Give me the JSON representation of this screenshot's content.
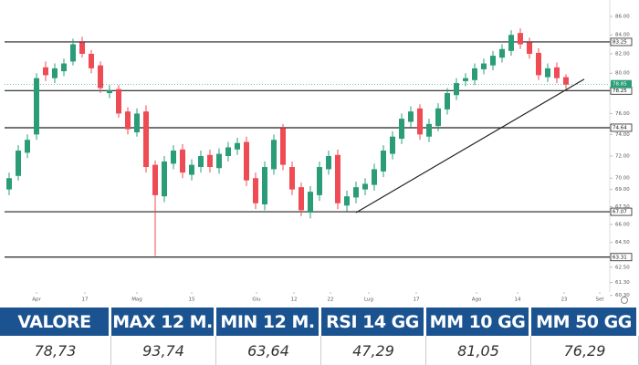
{
  "chart_data": {
    "type": "candlestick",
    "log_scale": true,
    "x": [
      0,
      1,
      2,
      3,
      4,
      5,
      6,
      7,
      8,
      9,
      10,
      11,
      12,
      13,
      14,
      15,
      16,
      17,
      18,
      19,
      20,
      21,
      22,
      23,
      24,
      25,
      26,
      27,
      28,
      29,
      30,
      31,
      32,
      33,
      34,
      35,
      36,
      37,
      38,
      39,
      40,
      41,
      42,
      43,
      44,
      45,
      46,
      47,
      48,
      49,
      50,
      51,
      52,
      53,
      54,
      55,
      56,
      57,
      58,
      59,
      60,
      61
    ],
    "open": [
      69.0,
      70.2,
      72.3,
      74.0,
      80.6,
      79.5,
      80.2,
      81.2,
      83.2,
      82.0,
      80.8,
      78.0,
      78.4,
      76.2,
      74.2,
      76.2,
      71.2,
      68.4,
      71.3,
      72.6,
      70.3,
      71.0,
      72.1,
      70.9,
      72.0,
      72.6,
      73.3,
      70.0,
      67.7,
      70.8,
      74.6,
      71.0,
      69.2,
      67.0,
      68.5,
      70.8,
      72.1,
      67.6,
      68.3,
      69.0,
      69.4,
      70.6,
      72.2,
      73.6,
      75.2,
      76.5,
      73.8,
      74.8,
      76.4,
      77.8,
      79.2,
      79.3,
      80.4,
      80.8,
      81.6,
      82.3,
      84.2,
      83.2,
      82.1,
      79.6,
      80.6,
      79.6
    ],
    "high": [
      70.5,
      73.0,
      74.0,
      80.0,
      81.2,
      81.0,
      81.5,
      83.6,
      83.8,
      82.4,
      81.2,
      78.8,
      78.8,
      76.6,
      76.5,
      76.8,
      71.6,
      72.0,
      73.0,
      73.1,
      71.7,
      72.5,
      72.6,
      72.7,
      73.3,
      73.7,
      73.8,
      70.5,
      71.5,
      74.0,
      75.0,
      71.5,
      69.6,
      69.3,
      71.5,
      72.5,
      72.6,
      68.9,
      69.7,
      70.0,
      71.3,
      73.0,
      74.3,
      76.0,
      76.7,
      76.9,
      75.5,
      77.0,
      78.5,
      79.5,
      80.0,
      81.0,
      81.5,
      82.3,
      83.0,
      84.5,
      84.7,
      83.7,
      82.6,
      81.0,
      81.1,
      79.9
    ],
    "low": [
      68.5,
      69.8,
      71.8,
      73.5,
      79.2,
      79.0,
      79.7,
      80.8,
      81.6,
      80.0,
      78.0,
      77.5,
      75.6,
      74.0,
      73.8,
      70.5,
      63.4,
      67.9,
      70.8,
      70.0,
      69.8,
      70.5,
      70.5,
      70.4,
      71.5,
      72.1,
      69.3,
      67.3,
      67.2,
      70.3,
      70.7,
      68.5,
      66.7,
      66.5,
      68.0,
      70.3,
      67.3,
      67.1,
      67.8,
      68.5,
      68.9,
      70.1,
      71.7,
      73.1,
      74.7,
      73.5,
      73.3,
      74.3,
      75.9,
      77.3,
      78.7,
      78.8,
      79.9,
      80.3,
      81.1,
      81.8,
      82.5,
      81.5,
      79.3,
      79.1,
      79.0,
      78.4
    ],
    "close": [
      70.0,
      72.5,
      73.5,
      79.5,
      79.8,
      80.5,
      81.0,
      83.0,
      82.0,
      80.5,
      78.5,
      78.3,
      76.0,
      74.5,
      76.0,
      71.0,
      68.5,
      71.5,
      72.5,
      70.5,
      71.2,
      72.0,
      71.0,
      72.2,
      72.8,
      73.2,
      69.8,
      67.8,
      71.0,
      73.5,
      71.2,
      69.0,
      67.2,
      68.8,
      71.0,
      72.0,
      67.8,
      68.4,
      69.2,
      69.5,
      70.8,
      72.5,
      73.8,
      75.5,
      76.2,
      74.0,
      75.0,
      76.5,
      78.0,
      79.0,
      79.5,
      80.5,
      81.0,
      81.8,
      82.5,
      84.0,
      83.0,
      82.0,
      79.8,
      80.5,
      79.5,
      78.85
    ],
    "up_color": "#2a9d78",
    "down_color": "#ef4b55",
    "xlim": [
      -0.5,
      65.5
    ],
    "ylim": [
      60,
      87
    ],
    "xticks": [
      {
        "value": 3,
        "label": "Apr"
      },
      {
        "value": 8.3,
        "label": "17"
      },
      {
        "value": 14,
        "label": "Mag"
      },
      {
        "value": 20,
        "label": "15"
      },
      {
        "value": 27.1,
        "label": "Giu"
      },
      {
        "value": 31.2,
        "label": "12"
      },
      {
        "value": 35.2,
        "label": "22"
      },
      {
        "value": 39.4,
        "label": "Lug"
      },
      {
        "value": 44.6,
        "label": "17"
      },
      {
        "value": 51.2,
        "label": "Ago"
      },
      {
        "value": 55.7,
        "label": "14"
      },
      {
        "value": 60.8,
        "label": "23"
      },
      {
        "value": 64.7,
        "label": "Set"
      }
    ],
    "yticks": [
      {
        "value": 86,
        "label": "86.00"
      },
      {
        "value": 84,
        "label": "84.00"
      },
      {
        "value": 82,
        "label": "82.00"
      },
      {
        "value": 80,
        "label": "80.00"
      },
      {
        "value": 76,
        "label": "76.00"
      },
      {
        "value": 74,
        "label": "74.00"
      },
      {
        "value": 72,
        "label": "72.00"
      },
      {
        "value": 70,
        "label": "70.00"
      },
      {
        "value": 69,
        "label": "69.00"
      },
      {
        "value": 67.5,
        "label": "67.50"
      },
      {
        "value": 66,
        "label": "66.00"
      },
      {
        "value": 64.5,
        "label": "64.50"
      },
      {
        "value": 62.5,
        "label": "62.50"
      },
      {
        "value": 61.3,
        "label": "61.30"
      },
      {
        "value": 60.3,
        "label": "60.30"
      }
    ],
    "levels": [
      {
        "value": 83.25,
        "label": "83.25"
      },
      {
        "value": 78.25,
        "label": "78.25"
      },
      {
        "value": 74.64,
        "label": "74.64"
      },
      {
        "value": 67.07,
        "label": "67.07"
      },
      {
        "value": 63.31,
        "label": "63.31"
      }
    ],
    "last_price": {
      "value": 78.85,
      "label": "78.85",
      "color": "#2a9d78"
    },
    "trendline": {
      "x": [
        38,
        63
      ],
      "y": [
        67.0,
        79.4
      ]
    }
  },
  "table": {
    "headers": [
      "VALORE",
      "MAX 12 M.",
      "MIN 12 M.",
      "RSI 14 GG",
      "MM 10 GG",
      "MM 50 GG"
    ],
    "values": [
      "78,73",
      "93,74",
      "63,64",
      "47,29",
      "81,05",
      "76,29"
    ]
  }
}
